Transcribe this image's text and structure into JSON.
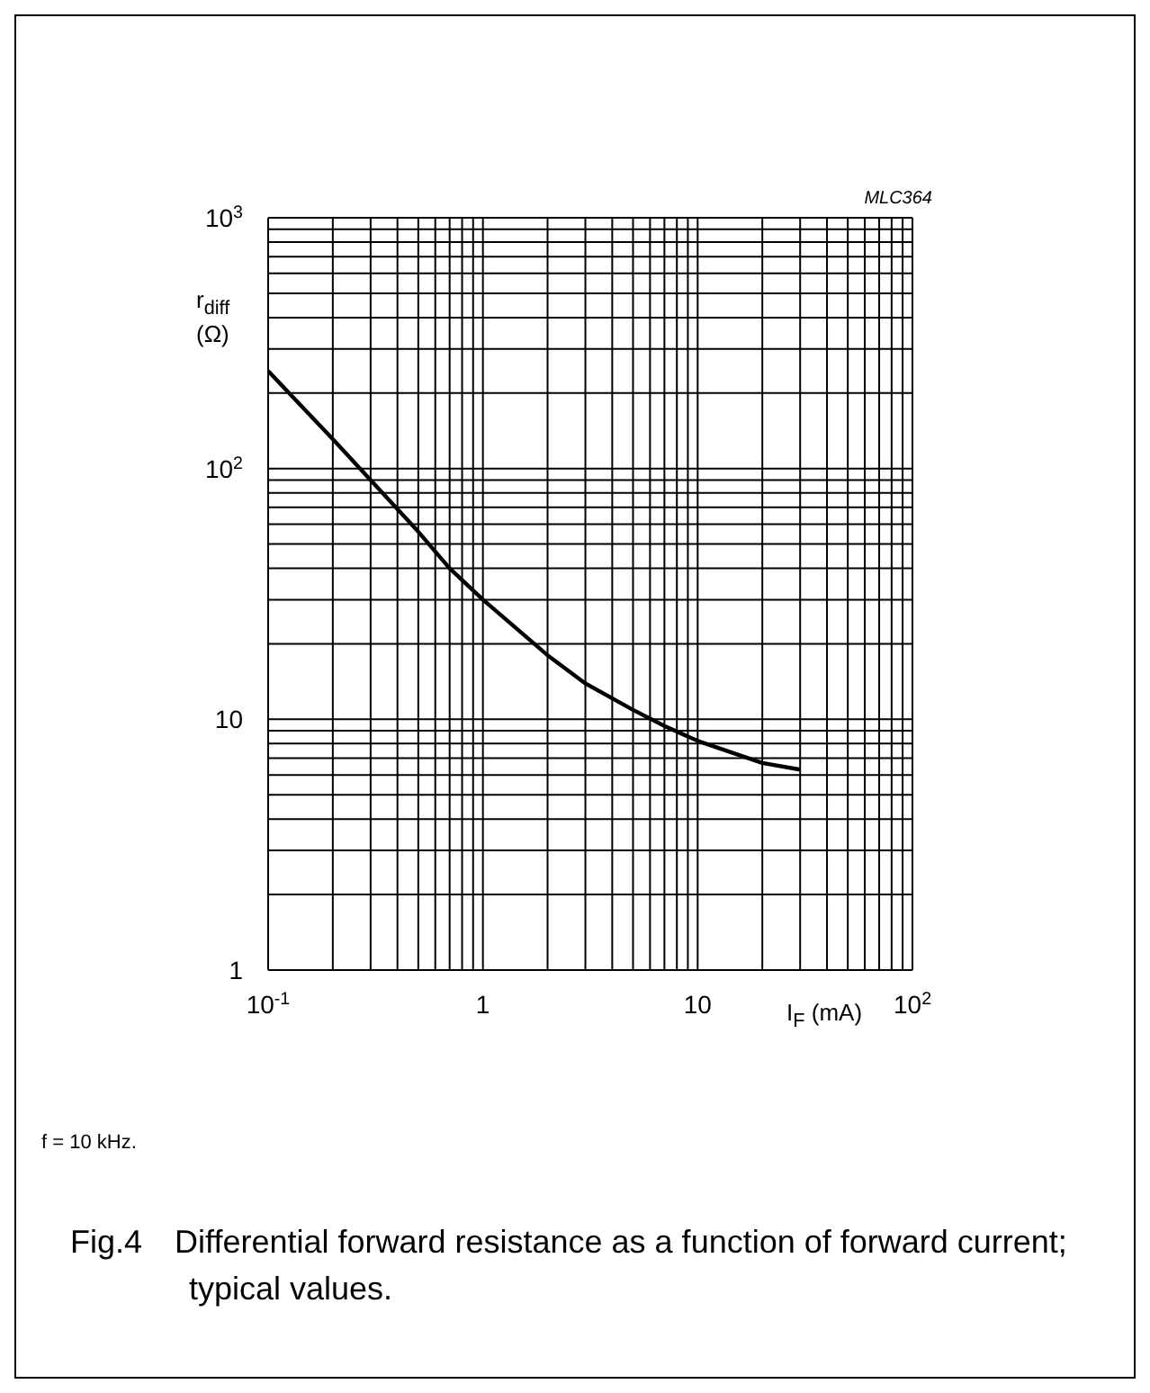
{
  "chart_data": {
    "type": "line",
    "title": "Fig.4 Differential forward resistance as a function of forward current; typical values.",
    "xlabel": "I$_{F}$ (mA)",
    "ylabel": "r$_{diff}$ (Ω)",
    "annotations": [
      "MLC364",
      "f = 10 kHz."
    ],
    "x": [
      0.1,
      0.2,
      0.3,
      0.5,
      0.7,
      1,
      2,
      3,
      5,
      7,
      10,
      20,
      30
    ],
    "series": [
      {
        "color": "#000000",
        "values": [
          245,
          131,
          90,
          56,
          40,
          30,
          18,
          13.9,
          10.9,
          9.4,
          8.2,
          6.7,
          6.3
        ]
      }
    ],
    "log": "xy",
    "grid": true,
    "xlim": [
      0.1,
      100
    ],
    "ylim": [
      1,
      1000
    ],
    "xticks": [
      {
        "value": 0.1,
        "label": "10$^{-1}$"
      },
      {
        "value": 0.2,
        "label": null
      },
      {
        "value": 0.3,
        "label": null
      },
      {
        "value": 0.4,
        "label": null
      },
      {
        "value": 0.5,
        "label": null
      },
      {
        "value": 0.6,
        "label": null
      },
      {
        "value": 0.7,
        "label": null
      },
      {
        "value": 0.8,
        "label": null
      },
      {
        "value": 0.9,
        "label": null
      },
      1,
      {
        "value": 2,
        "label": null
      },
      {
        "value": 3,
        "label": null
      },
      {
        "value": 4,
        "label": null
      },
      {
        "value": 5,
        "label": null
      },
      {
        "value": 6,
        "label": null
      },
      {
        "value": 7,
        "label": null
      },
      {
        "value": 8,
        "label": null
      },
      {
        "value": 9,
        "label": null
      },
      10,
      {
        "value": 20,
        "label": null
      },
      {
        "value": 30,
        "label": null
      },
      {
        "value": 40,
        "label": null
      },
      {
        "value": 50,
        "label": null
      },
      {
        "value": 60,
        "label": null
      },
      {
        "value": 70,
        "label": null
      },
      {
        "value": 80,
        "label": null
      },
      {
        "value": 90,
        "label": null
      },
      {
        "value": 100,
        "label": "10$^{2}$"
      }
    ],
    "yticks": [
      1,
      {
        "value": 2,
        "label": null
      },
      {
        "value": 3,
        "label": null
      },
      {
        "value": 4,
        "label": null
      },
      {
        "value": 5,
        "label": null
      },
      {
        "value": 6,
        "label": null
      },
      {
        "value": 7,
        "label": null
      },
      {
        "value": 8,
        "label": null
      },
      {
        "value": 9,
        "label": null
      },
      10,
      {
        "value": 20,
        "label": null
      },
      {
        "value": 30,
        "label": null
      },
      {
        "value": 40,
        "label": null
      },
      {
        "value": 50,
        "label": null
      },
      {
        "value": 60,
        "label": null
      },
      {
        "value": 70,
        "label": null
      },
      {
        "value": 80,
        "label": null
      },
      {
        "value": 90,
        "label": null
      },
      {
        "value": 100,
        "label": "10$^{2}$"
      },
      {
        "value": 200,
        "label": null
      },
      {
        "value": 300,
        "label": null
      },
      {
        "value": 400,
        "label": null
      },
      {
        "value": 500,
        "label": null
      },
      {
        "value": 600,
        "label": null
      },
      {
        "value": 700,
        "label": null
      },
      {
        "value": 800,
        "label": null
      },
      {
        "value": 900,
        "label": null
      },
      {
        "value": 1000,
        "label": "10$^{3}$"
      }
    ]
  }
}
